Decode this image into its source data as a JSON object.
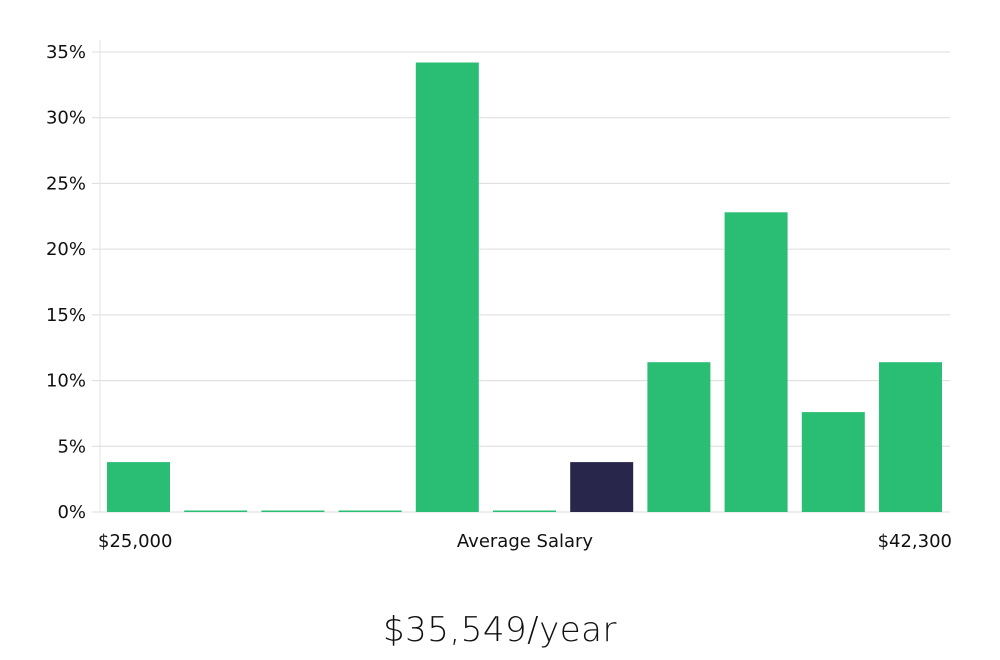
{
  "chart_data": {
    "type": "bar",
    "title": "",
    "xlabel": "Average Salary",
    "x_min_label": "$25,000",
    "x_max_label": "$42,300",
    "ylabel": "",
    "ylim": [
      0,
      35
    ],
    "yticks": [
      0,
      5,
      10,
      15,
      20,
      25,
      30,
      35
    ],
    "ytick_labels": [
      "0%",
      "5%",
      "10%",
      "15%",
      "20%",
      "25%",
      "30%",
      "35%"
    ],
    "values": [
      3.8,
      0,
      0,
      0,
      34.2,
      0,
      3.8,
      11.4,
      22.8,
      7.6,
      11.4
    ],
    "highlight_index": 6,
    "colors": {
      "bar": "#2abd74",
      "highlight": "#28264a",
      "grid": "#dcdcdc"
    },
    "grid": true
  },
  "summary": {
    "average_salary": "$35,549/year"
  }
}
